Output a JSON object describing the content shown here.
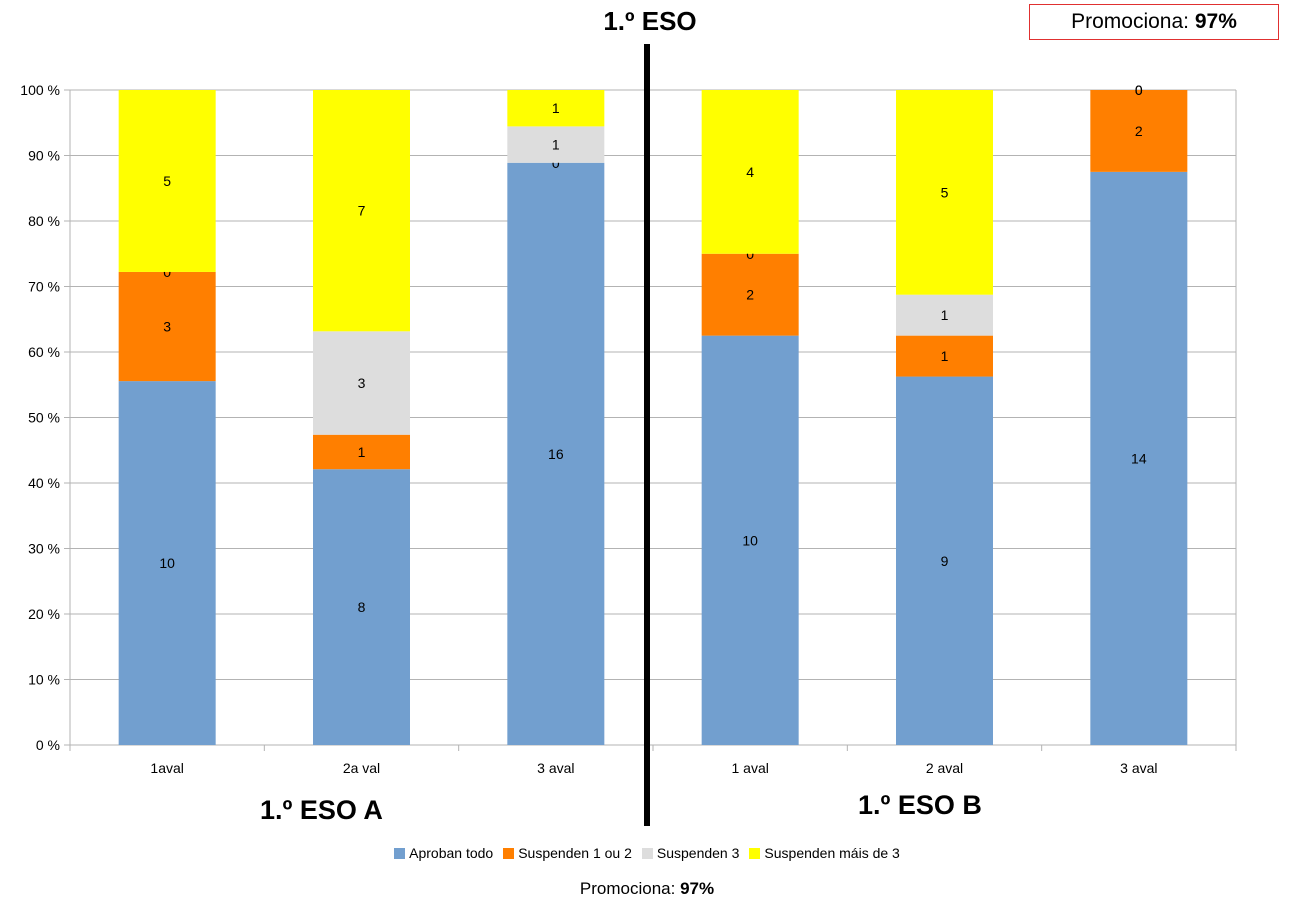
{
  "header": {
    "title": "1.º ESO",
    "promo_label": "Promociona:",
    "promo_value": "97%"
  },
  "groups": [
    {
      "label": "1.º ESO A"
    },
    {
      "label": "1.º ESO B"
    }
  ],
  "footer": {
    "promo_label": "Promociona:",
    "promo_value": "97%"
  },
  "chart_data": {
    "type": "bar",
    "stacked": "percent",
    "categories": [
      "1aval",
      "2a val",
      "3 aval",
      "1 aval",
      "2 aval",
      "3 aval"
    ],
    "series": [
      {
        "name": "Aproban todo",
        "color": "#729fcf",
        "values": [
          10,
          8,
          16,
          10,
          9,
          14
        ]
      },
      {
        "name": "Suspenden 1 ou 2",
        "color": "#ff7f00",
        "values": [
          3,
          1,
          0,
          2,
          1,
          2
        ]
      },
      {
        "name": "Suspenden 3",
        "color": "#dddddd",
        "values": [
          0,
          3,
          1,
          0,
          1,
          0
        ]
      },
      {
        "name": "Suspenden máis de 3",
        "color": "#ffff00",
        "values": [
          5,
          7,
          1,
          4,
          5,
          0
        ]
      }
    ],
    "y_ticks": [
      "0 %",
      "10 %",
      "20 %",
      "30 %",
      "40 %",
      "50 %",
      "60 %",
      "70 %",
      "80 %",
      "90 %",
      "100 %"
    ],
    "ylim": [
      0,
      100
    ],
    "grid": true,
    "legend_position": "bottom"
  }
}
